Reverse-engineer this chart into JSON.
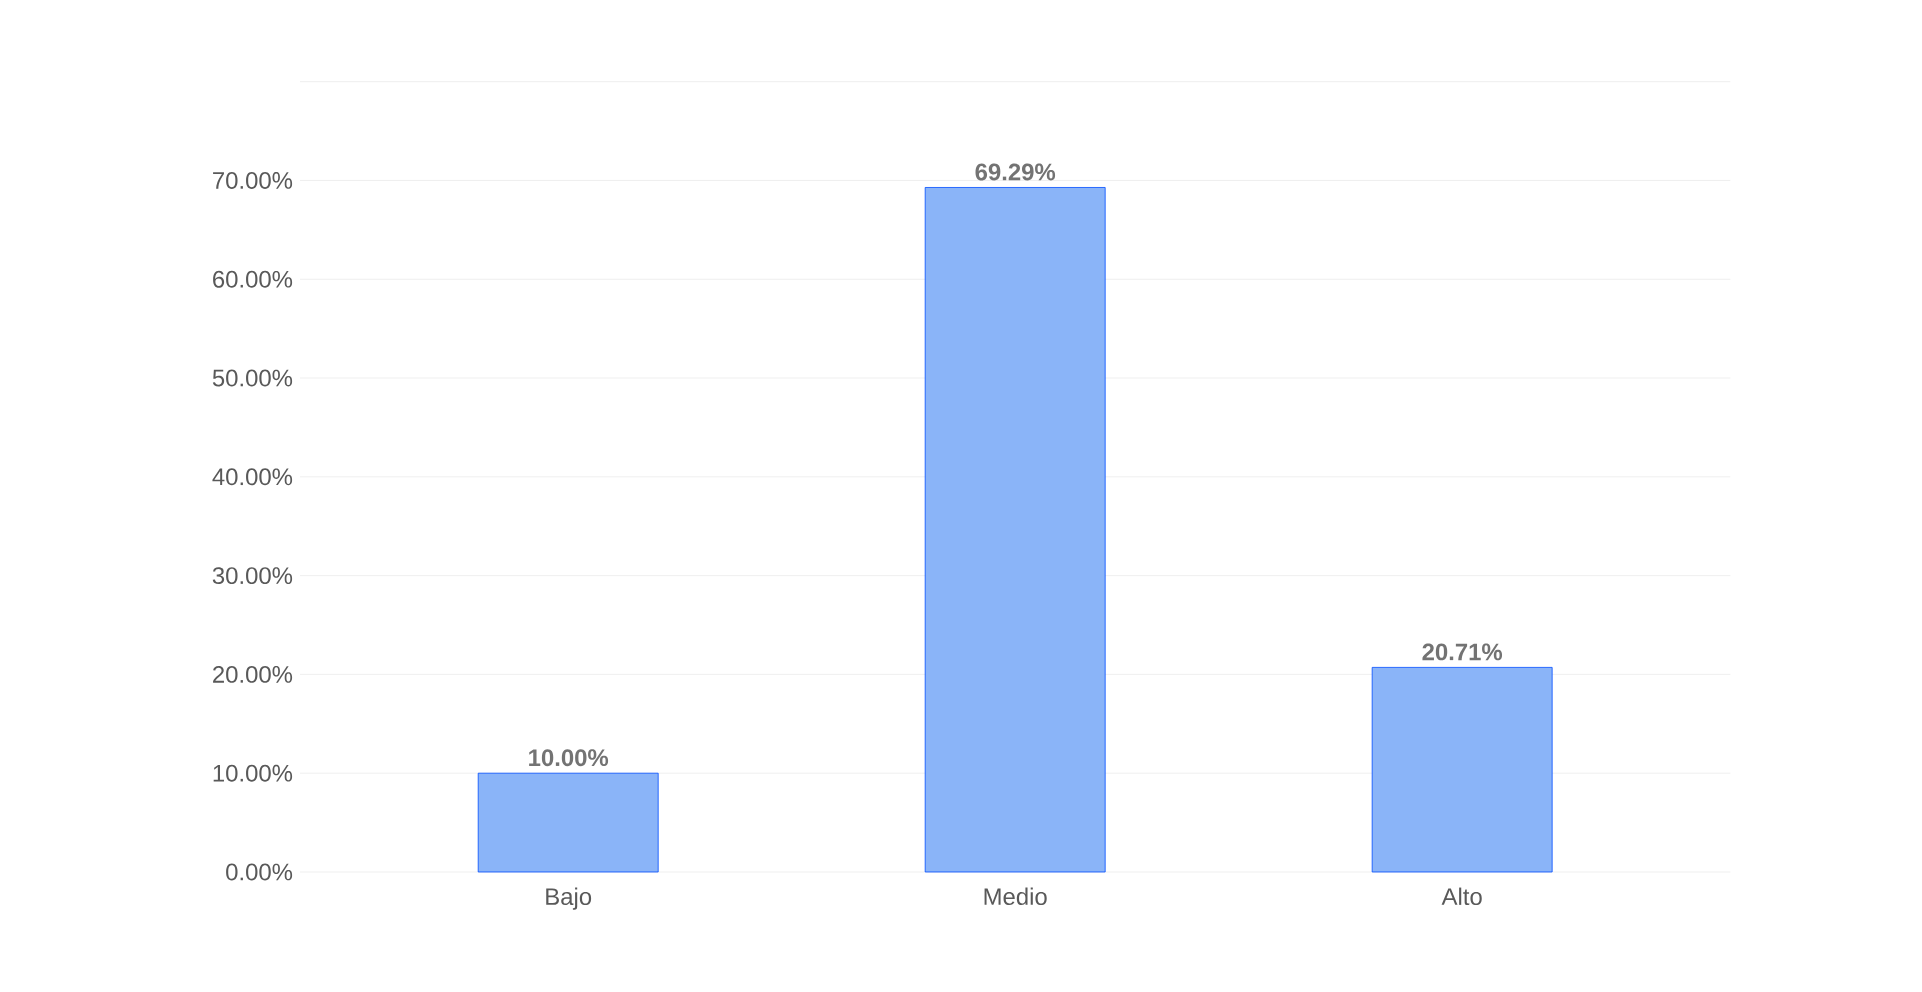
{
  "chart_data": {
    "type": "bar",
    "categories": [
      "Bajo",
      "Medio",
      "Alto"
    ],
    "values": [
      10,
      69.29,
      20.71
    ],
    "value_labels": [
      "10.00%",
      "69.29%",
      "20.71%"
    ],
    "color": "#8ab4f8",
    "ylim": [
      0,
      80
    ],
    "yticks": [
      {
        "value": 0,
        "label": "0.00%"
      },
      {
        "value": 10,
        "label": "10.00%"
      },
      {
        "value": 20,
        "label": "20.00%"
      },
      {
        "value": 30,
        "label": "30.00%"
      },
      {
        "value": 40,
        "label": "40.00%"
      },
      {
        "value": 50,
        "label": "50.00%"
      },
      {
        "value": 60,
        "label": "60.00%"
      },
      {
        "value": 70,
        "label": "70.00%"
      },
      {
        "value": 80,
        "label": null
      }
    ],
    "grid": "y"
  }
}
